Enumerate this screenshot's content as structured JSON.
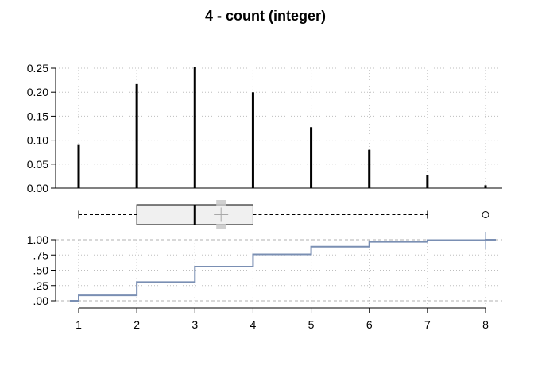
{
  "chart_data": {
    "title": "4 - count (integer)",
    "colors": {
      "bars": "#000000",
      "ecdf": "#7a8fb3",
      "box_fill": "#f0f0f0",
      "mean_marker": "#c8c8c8",
      "grid": "#bdbdbd"
    },
    "panels": [
      {
        "type": "bar",
        "role": "probability-mass",
        "x": [
          1,
          2,
          3,
          4,
          5,
          6,
          7,
          8
        ],
        "values": [
          0.09,
          0.217,
          0.252,
          0.2,
          0.127,
          0.08,
          0.027,
          0.006
        ],
        "ylim": [
          0,
          0.25
        ],
        "yticks": [
          0,
          0.05,
          0.1,
          0.15,
          0.2,
          0.25
        ],
        "ytick_labels": [
          "0.00",
          "0.05",
          "0.10",
          "0.15",
          "0.20",
          "0.25"
        ],
        "grid": true
      },
      {
        "type": "boxplot",
        "whisker_low": 1,
        "q1": 2,
        "median": 3,
        "q3": 4,
        "whisker_high": 7,
        "mean": 3.45,
        "outliers": [
          8
        ]
      },
      {
        "type": "line",
        "role": "ecdf-step",
        "x": [
          1,
          2,
          3,
          4,
          5,
          6,
          7,
          8
        ],
        "y": [
          0.09,
          0.307,
          0.559,
          0.759,
          0.886,
          0.966,
          0.993,
          1.0
        ],
        "ylim": [
          0,
          1
        ],
        "yticks": [
          0,
          0.25,
          0.5,
          0.75,
          1.0
        ],
        "ytick_labels": [
          ".00",
          ".25",
          ".50",
          ".75",
          "1.00"
        ],
        "grid": true
      }
    ],
    "xlim": [
      1,
      8
    ],
    "xticks": [
      1,
      2,
      3,
      4,
      5,
      6,
      7,
      8
    ],
    "xtick_labels": [
      "1",
      "2",
      "3",
      "4",
      "5",
      "6",
      "7",
      "8"
    ]
  }
}
